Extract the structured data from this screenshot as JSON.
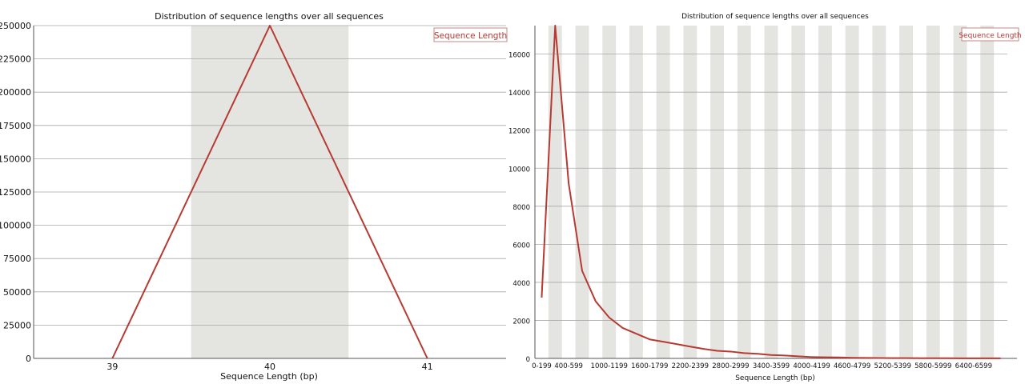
{
  "chart_data": [
    {
      "type": "line",
      "title": "Distribution of sequence lengths over all sequences",
      "xlabel": "Sequence Length (bp)",
      "ylabel": "",
      "categories": [
        "39",
        "40",
        "41"
      ],
      "series": [
        {
          "name": "Sequence Length",
          "color": "#b73a32",
          "values": [
            0,
            250000,
            0
          ]
        }
      ],
      "ylim": [
        0,
        250000
      ],
      "yticks": [
        "0",
        "25000",
        "50000",
        "75000",
        "100000",
        "125000",
        "150000",
        "175000",
        "200000",
        "225000",
        "250000"
      ],
      "grid": true,
      "legend": "top-right"
    },
    {
      "type": "line",
      "title": "Distribution of sequence lengths over all sequences",
      "xlabel": "Sequence Length (bp)",
      "ylabel": "",
      "categories": [
        "0-199",
        "200-399",
        "400-599",
        "600-799",
        "800-999",
        "1000-1199",
        "1200-1399",
        "1400-1599",
        "1600-1799",
        "1800-1999",
        "2000-2199",
        "2200-2399",
        "2400-2599",
        "2600-2799",
        "2800-2999",
        "3000-3199",
        "3200-3399",
        "3400-3599",
        "3600-3799",
        "3800-3999",
        "4000-4199",
        "4200-4399",
        "4400-4599",
        "4600-4799",
        "4800-4999",
        "5000-5199",
        "5200-5399",
        "5400-5599",
        "5600-5799",
        "5800-5999",
        "6000-6199",
        "6200-6399",
        "6400-6599",
        "6600-6799",
        "6800-6999"
      ],
      "xtick_labels": [
        "0-199",
        "400-599",
        "1000-1199",
        "1600-1799",
        "2200-2399",
        "2800-2999",
        "3400-3599",
        "4000-4199",
        "4600-4799",
        "5200-5399",
        "5800-5999",
        "6400-6599"
      ],
      "series": [
        {
          "name": "Sequence Length",
          "color": "#b73a32",
          "values": [
            3200,
            17500,
            9200,
            4600,
            3000,
            2150,
            1600,
            1300,
            1000,
            880,
            750,
            620,
            500,
            400,
            360,
            280,
            240,
            180,
            150,
            110,
            70,
            60,
            50,
            30,
            25,
            20,
            18,
            15,
            12,
            10,
            8,
            6,
            5,
            4,
            3
          ]
        }
      ],
      "ylim": [
        0,
        17500
      ],
      "yticks": [
        "0",
        "2000",
        "4000",
        "6000",
        "8000",
        "10000",
        "12000",
        "14000",
        "16000"
      ],
      "grid": true,
      "legend": "top-right"
    }
  ]
}
